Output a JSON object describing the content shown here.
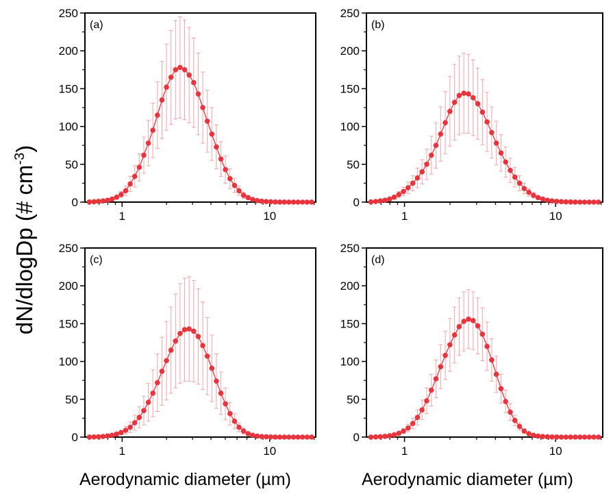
{
  "figure": {
    "ylabel": "dN/dlogDp (# cm",
    "ylabel_sup": "-3",
    "ylabel_end": ")",
    "xlabel": "Aerodynamic diameter (µm)",
    "accent_color": "#e8343c",
    "errorbar_color": "#f4a3a7"
  },
  "chart_data": [
    {
      "type": "scatter",
      "panel_label": "(a)",
      "x_scale": "log",
      "xlim": [
        0.56,
        20.5
      ],
      "ylim": [
        0,
        250
      ],
      "yticks": [
        0,
        50,
        100,
        150,
        200,
        250
      ],
      "xticks": [
        1,
        10
      ],
      "xlabel": "Aerodynamic diameter (µm)",
      "ylabel": "dN/dlogDp (# cm-3)",
      "x": [
        0.6,
        0.645,
        0.692,
        0.742,
        0.797,
        0.855,
        0.918,
        0.985,
        1.057,
        1.135,
        1.218,
        1.307,
        1.403,
        1.506,
        1.616,
        1.735,
        1.862,
        1.998,
        2.145,
        2.302,
        2.471,
        2.652,
        2.846,
        3.055,
        3.279,
        3.519,
        3.777,
        4.054,
        4.351,
        4.67,
        5.012,
        5.38,
        5.774,
        6.197,
        6.651,
        7.139,
        7.662,
        8.224,
        8.826,
        9.473,
        10.168,
        10.913,
        11.713,
        12.572,
        13.493,
        14.482,
        15.544,
        16.683,
        17.906,
        19.218
      ],
      "y": [
        0.2,
        0.5,
        1,
        1.5,
        2.5,
        4,
        6.5,
        10,
        15,
        24,
        34,
        46,
        62,
        78,
        95,
        115,
        135,
        152,
        165,
        175,
        178,
        175,
        168,
        158,
        143,
        125,
        107,
        90,
        73,
        57,
        43,
        31,
        22,
        15,
        9,
        6,
        3.5,
        2,
        1.2,
        0.7,
        0.4,
        0.2,
        0.1,
        0.1,
        0,
        0,
        0,
        0,
        0,
        0
      ],
      "err": [
        0.1,
        0.2,
        0.4,
        0.6,
        1,
        1.5,
        2.5,
        4,
        6,
        10,
        14,
        18,
        24,
        30,
        36,
        44,
        51,
        57,
        62,
        65,
        67,
        66,
        63,
        59,
        54,
        47,
        41,
        35,
        29,
        23,
        18,
        13,
        9,
        6,
        4,
        2.5,
        1.5,
        0.8,
        0.5,
        0.3,
        0.2,
        0.1,
        0,
        0,
        0,
        0,
        0,
        0,
        0,
        0
      ]
    },
    {
      "type": "scatter",
      "panel_label": "(b)",
      "x_scale": "log",
      "xlim": [
        0.56,
        20.5
      ],
      "ylim": [
        0,
        250
      ],
      "yticks": [
        0,
        50,
        100,
        150,
        200,
        250
      ],
      "xticks": [
        1,
        10
      ],
      "xlabel": "Aerodynamic diameter (µm)",
      "ylabel": "dN/dlogDp (# cm-3)",
      "x": [
        0.6,
        0.645,
        0.692,
        0.742,
        0.797,
        0.855,
        0.918,
        0.985,
        1.057,
        1.135,
        1.218,
        1.307,
        1.403,
        1.506,
        1.616,
        1.735,
        1.862,
        1.998,
        2.145,
        2.302,
        2.471,
        2.652,
        2.846,
        3.055,
        3.279,
        3.519,
        3.777,
        4.054,
        4.351,
        4.67,
        5.012,
        5.38,
        5.774,
        6.197,
        6.651,
        7.139,
        7.662,
        8.224,
        8.826,
        9.473,
        10.168,
        10.913,
        11.713,
        12.572,
        13.493,
        14.482,
        15.544,
        16.683,
        17.906,
        19.218
      ],
      "y": [
        0.3,
        0.8,
        1.5,
        2.5,
        4,
        6.5,
        10,
        14,
        19,
        25,
        32,
        40,
        50,
        62,
        75,
        90,
        105,
        120,
        132,
        141,
        144,
        143,
        138,
        130,
        119,
        106,
        92,
        78,
        65,
        53,
        42,
        33,
        25,
        18,
        13,
        9,
        6,
        4,
        2.5,
        1.5,
        1,
        0.6,
        0.3,
        0.2,
        0.1,
        0,
        0,
        0,
        0,
        0
      ],
      "err": [
        0.1,
        0.3,
        0.6,
        1,
        1.6,
        2.6,
        4,
        5.6,
        7.6,
        10,
        13,
        16,
        20,
        25,
        30,
        36,
        41,
        46,
        50,
        52,
        53,
        52,
        50,
        47,
        43,
        39,
        34,
        29,
        24,
        20,
        16,
        13,
        10,
        7,
        5,
        3.5,
        2.3,
        1.5,
        1,
        0.6,
        0.4,
        0.2,
        0.1,
        0,
        0,
        0,
        0,
        0,
        0,
        0
      ]
    },
    {
      "type": "scatter",
      "panel_label": "(c)",
      "x_scale": "log",
      "xlim": [
        0.56,
        20.5
      ],
      "ylim": [
        0,
        250
      ],
      "yticks": [
        0,
        50,
        100,
        150,
        200,
        250
      ],
      "xticks": [
        1,
        10
      ],
      "xlabel": "Aerodynamic diameter (µm)",
      "ylabel": "dN/dlogDp (# cm-3)",
      "x": [
        0.6,
        0.645,
        0.692,
        0.742,
        0.797,
        0.855,
        0.918,
        0.985,
        1.057,
        1.135,
        1.218,
        1.307,
        1.403,
        1.506,
        1.616,
        1.735,
        1.862,
        1.998,
        2.145,
        2.302,
        2.471,
        2.652,
        2.846,
        3.055,
        3.279,
        3.519,
        3.777,
        4.054,
        4.351,
        4.67,
        5.012,
        5.38,
        5.774,
        6.197,
        6.651,
        7.139,
        7.662,
        8.224,
        8.826,
        9.473,
        10.168,
        10.913,
        11.713,
        12.572,
        13.493,
        14.482,
        15.544,
        16.683,
        17.906,
        19.218
      ],
      "y": [
        0,
        0.2,
        0.4,
        0.8,
        1.5,
        2.5,
        4,
        6,
        9,
        13,
        19,
        26,
        35,
        46,
        58,
        72,
        87,
        101,
        115,
        127,
        137,
        142,
        143,
        140,
        133,
        121,
        107,
        91,
        74,
        58,
        44,
        31,
        21,
        13,
        8,
        4.5,
        2.5,
        1.3,
        0.7,
        0.4,
        0.2,
        0.1,
        0,
        0,
        0,
        0,
        0,
        0,
        0,
        0
      ],
      "err": [
        0,
        0.1,
        0.2,
        0.4,
        0.8,
        1.3,
        2,
        3,
        5,
        7,
        10,
        14,
        19,
        25,
        31,
        38,
        45,
        52,
        57,
        62,
        66,
        68,
        69,
        67,
        63,
        58,
        51,
        44,
        36,
        28,
        21,
        15,
        10,
        6,
        4,
        2,
        1,
        0.5,
        0.3,
        0.2,
        0.1,
        0,
        0,
        0,
        0,
        0,
        0,
        0,
        0,
        0
      ]
    },
    {
      "type": "scatter",
      "panel_label": "(d)",
      "x_scale": "log",
      "xlim": [
        0.56,
        20.5
      ],
      "ylim": [
        0,
        250
      ],
      "yticks": [
        0,
        50,
        100,
        150,
        200,
        250
      ],
      "xticks": [
        1,
        10
      ],
      "xlabel": "Aerodynamic diameter (µm)",
      "ylabel": "dN/dlogDp (# cm-3)",
      "x": [
        0.6,
        0.645,
        0.692,
        0.742,
        0.797,
        0.855,
        0.918,
        0.985,
        1.057,
        1.135,
        1.218,
        1.307,
        1.403,
        1.506,
        1.616,
        1.735,
        1.862,
        1.998,
        2.145,
        2.302,
        2.471,
        2.652,
        2.846,
        3.055,
        3.279,
        3.519,
        3.777,
        4.054,
        4.351,
        4.67,
        5.012,
        5.38,
        5.774,
        6.197,
        6.651,
        7.139,
        7.662,
        8.224,
        8.826,
        9.473,
        10.168,
        10.913,
        11.713,
        12.572,
        13.493,
        14.482,
        15.544,
        16.683,
        17.906,
        19.218
      ],
      "y": [
        0,
        0.2,
        0.5,
        1,
        1.8,
        3,
        5,
        8,
        12,
        18,
        26,
        36,
        48,
        62,
        77,
        93,
        108,
        122,
        135,
        146,
        153,
        156,
        154,
        147,
        136,
        120,
        102,
        83,
        64,
        47,
        33,
        22,
        14,
        8,
        4.5,
        2.5,
        1.3,
        0.7,
        0.4,
        0.2,
        0.1,
        0,
        0,
        0,
        0,
        0,
        0,
        0,
        0,
        0
      ],
      "err": [
        0,
        0.1,
        0.2,
        0.4,
        0.7,
        1.2,
        2,
        3,
        5,
        7,
        10,
        13,
        17,
        21,
        25,
        29,
        32,
        35,
        37,
        38,
        39,
        39,
        38,
        37,
        35,
        32,
        28,
        24,
        19,
        15,
        11,
        7,
        5,
        3,
        1.8,
        1,
        0.5,
        0.3,
        0.2,
        0.1,
        0,
        0,
        0,
        0,
        0,
        0,
        0,
        0,
        0,
        0
      ]
    }
  ]
}
